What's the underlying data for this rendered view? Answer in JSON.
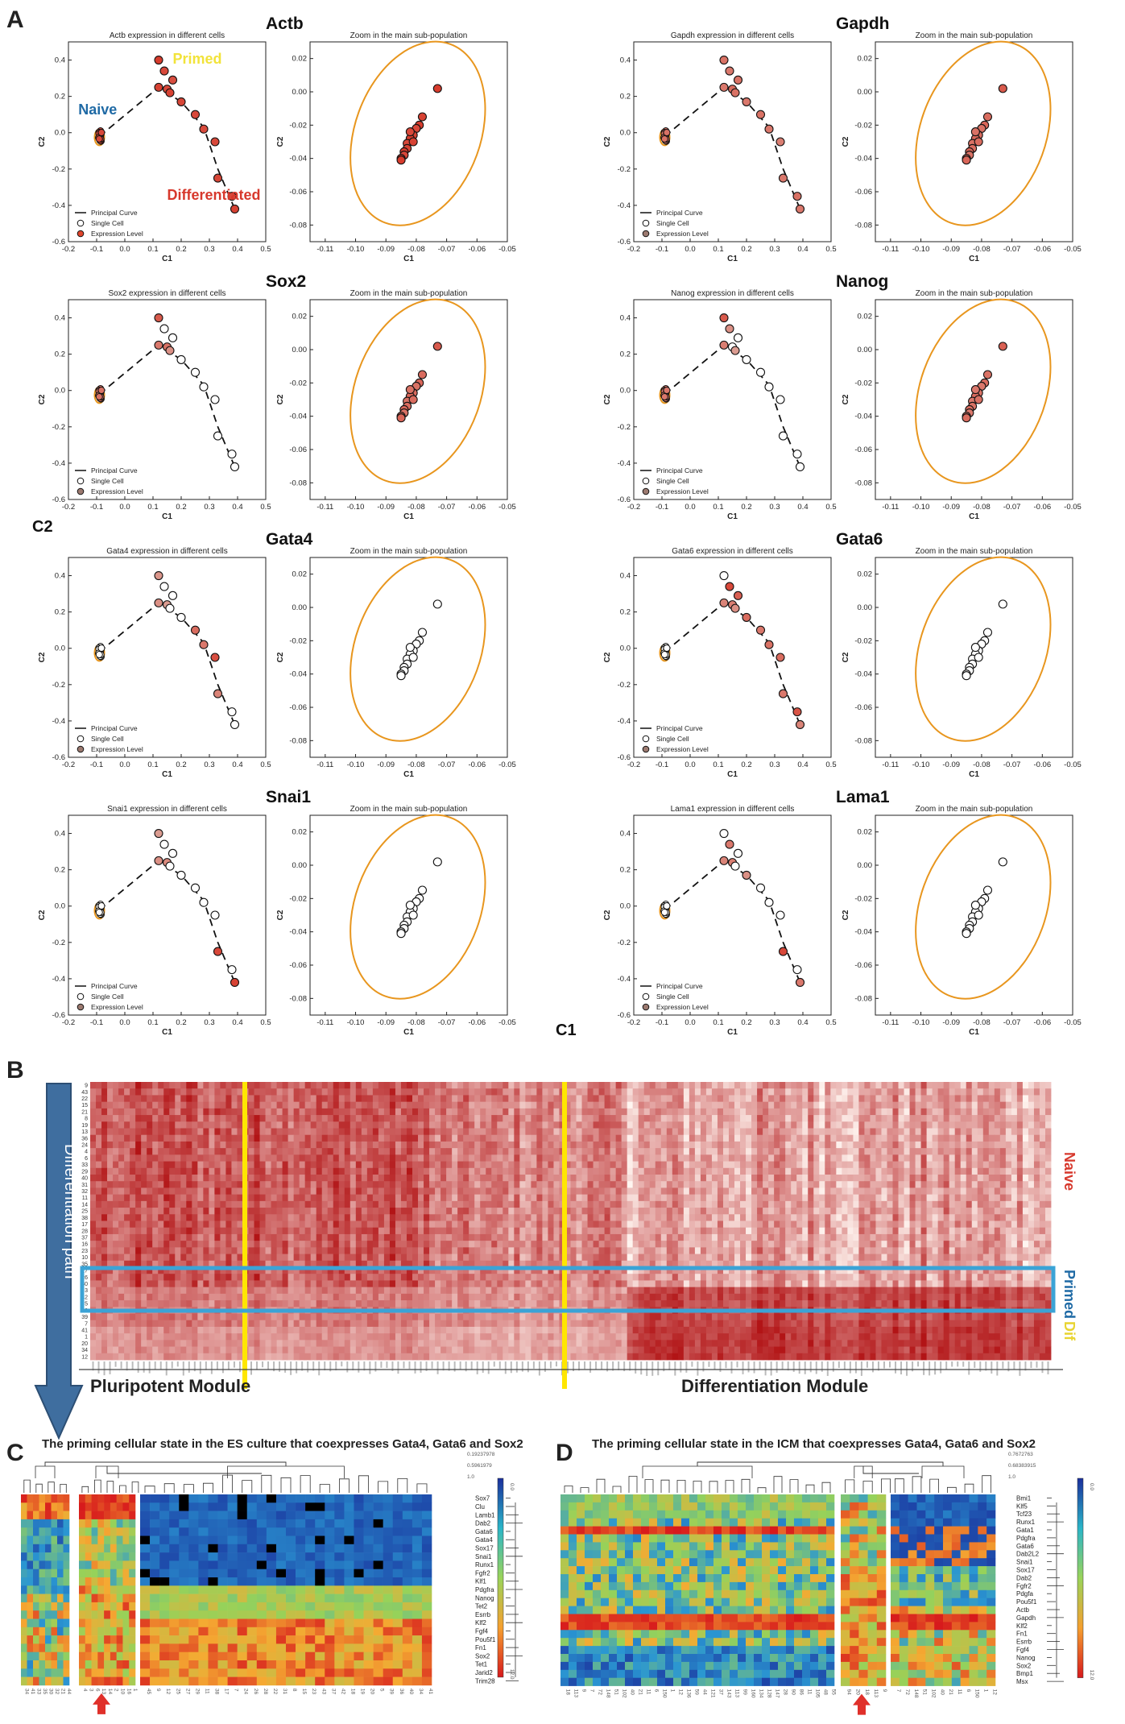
{
  "panels": {
    "A": "A",
    "B": "B",
    "C": "C",
    "D": "D"
  },
  "panelA": {
    "shared_ylabel": "C2",
    "shared_xlabel": "C1",
    "states": {
      "naive": "Naive",
      "primed": "Primed",
      "differentiated": "Differentiated"
    },
    "state_colors": {
      "naive": "#1f6aa5",
      "primed": "#f2e33a",
      "differentiated": "#d7382c"
    },
    "zoom_title": "Zoom in the main sub-population",
    "axis_label_x": "C1",
    "axis_label_y": "C2",
    "main_xticks": [
      "-0.2",
      "-0.1",
      "0.0",
      "0.1",
      "0.2",
      "0.3",
      "0.4",
      "0.5"
    ],
    "main_yticks": [
      "0.4",
      "0.2",
      "0.0",
      "-0.2",
      "-0.4",
      "-0.6"
    ],
    "zoom_xticks": [
      "-0.11",
      "-0.10",
      "-0.09",
      "-0.08",
      "-0.07",
      "-0.06",
      "-0.05"
    ],
    "zoom_yticks": [
      "0.02",
      "0.00",
      "-0.02",
      "-0.04",
      "-0.06",
      "-0.08"
    ],
    "legend": [
      "Principal Curve",
      "Single Cell",
      "Expression Level"
    ],
    "genes": [
      {
        "name": "Actb",
        "title": "Actb expression in different cells",
        "expr": [
          1.0,
          0.9,
          0.85,
          0.95,
          0.9,
          0.95,
          0.92,
          0.9,
          0.88,
          0.9,
          0.92,
          0.9,
          0.95
        ],
        "zoom_expr": 0.9
      },
      {
        "name": "Gapdh",
        "title": "Gapdh expression in different cells",
        "expr": [
          0.55,
          0.5,
          0.55,
          0.5,
          0.6,
          0.55,
          0.5,
          0.55,
          0.5,
          0.45,
          0.5,
          0.55,
          0.5
        ],
        "zoom_expr": 0.55
      },
      {
        "name": "Sox2",
        "title": "Sox2 expression in different cells",
        "expr": [
          0.75,
          0.0,
          0.0,
          0.5,
          0.55,
          0.3,
          0.0,
          0.0,
          0.0,
          0.0,
          0.0,
          0.0,
          0.0
        ],
        "zoom_expr": 0.55
      },
      {
        "name": "Nanog",
        "title": "Nanog expression in different cells",
        "expr": [
          0.75,
          0.3,
          0.0,
          0.45,
          0.0,
          0.2,
          0.0,
          0.0,
          0.0,
          0.0,
          0.0,
          0.0,
          0.0
        ],
        "zoom_expr": 0.5
      },
      {
        "name": "Gata4",
        "title": "Gata4 expression in different cells",
        "expr": [
          0.25,
          0.0,
          0.0,
          0.3,
          0.2,
          0.0,
          0.0,
          0.6,
          0.5,
          0.85,
          0.4,
          0.0,
          0.0
        ],
        "zoom_expr": 0.0
      },
      {
        "name": "Gata6",
        "title": "Gata6 expression in different cells",
        "expr": [
          0.0,
          0.9,
          0.7,
          0.4,
          0.45,
          0.3,
          0.6,
          0.5,
          0.55,
          0.6,
          0.5,
          0.8,
          0.4
        ],
        "zoom_expr": 0.0
      },
      {
        "name": "Snai1",
        "title": "Snai1 expression in different cells",
        "expr": [
          0.2,
          0.0,
          0.0,
          0.3,
          0.35,
          0.0,
          0.0,
          0.0,
          0.0,
          0.0,
          0.9,
          0.0,
          0.95
        ],
        "zoom_expr": 0.0
      },
      {
        "name": "Lama1",
        "title": "Lama1 expression in different cells",
        "expr": [
          0.0,
          0.5,
          0.0,
          0.4,
          0.45,
          0.0,
          0.3,
          0.0,
          0.0,
          0.0,
          0.9,
          0.0,
          0.5
        ],
        "zoom_expr": 0.0
      }
    ]
  },
  "panelB": {
    "arrow_label": "Differentiation path",
    "states": [
      "Naive",
      "Primed",
      "Dif"
    ],
    "module_left": "Pluripotent Module",
    "module_right": "Differentiation Module",
    "row_labels": [
      "9",
      "43",
      "22",
      "15",
      "21",
      "8",
      "19",
      "13",
      "36",
      "24",
      "4",
      "6",
      "33",
      "29",
      "40",
      "31",
      "32",
      "11",
      "14",
      "25",
      "38",
      "17",
      "28",
      "37",
      "16",
      "23",
      "10",
      "35",
      "27",
      "26",
      "30",
      "3",
      "42",
      "5",
      "2",
      "39",
      "7",
      "41",
      "1",
      "20",
      "34",
      "12"
    ],
    "column_count": 170
  },
  "panelC": {
    "title": "The priming cellular state in the ES culture that coexpresses Gata4, Gata6 and Sox2",
    "genes": [
      "Sox7",
      "Clu",
      "Lamb1",
      "Dab2",
      "Gata6",
      "Gata4",
      "Sox17",
      "Snai1",
      "Runx1",
      "Fgfr2",
      "Klf1",
      "Pdgfra",
      "Nanog",
      "Tet2",
      "Esrrb",
      "Klf2",
      "Fgf4",
      "Pou5f1",
      "Fn1",
      "Sox2",
      "Tet1",
      "Jarid2",
      "Trim28"
    ],
    "colorbar_ticks": [
      "0.0",
      "12.0"
    ],
    "dendro_values": [
      "0.19237978",
      "0.5961979",
      "1.0"
    ],
    "column_labels": [
      "34",
      "41",
      "33",
      "35",
      "30",
      "32",
      "21",
      "44",
      "4",
      "3",
      "6",
      "13",
      "14",
      "2",
      "10",
      "16",
      "1",
      "45",
      "9",
      "12",
      "25",
      "27",
      "29",
      "11",
      "38",
      "17",
      "7",
      "24",
      "26",
      "28",
      "22",
      "31",
      "8",
      "15",
      "23",
      "43",
      "37",
      "42",
      "18",
      "19",
      "20",
      "5",
      "39",
      "36",
      "40"
    ]
  },
  "panelD": {
    "title": "The priming cellular state in the ICM that coexpresses Gata4, Gata6 and Sox2",
    "genes": [
      "Bmi1",
      "Klf5",
      "Tcf23",
      "Runx1",
      "Gata1",
      "Pdgfra",
      "Gata6",
      "Dab2L2",
      "Snai1",
      "Sox17",
      "Dab2",
      "Fgfr2",
      "Pdgfa",
      "Pou5f1",
      "Actb",
      "Gapdh",
      "Klf2",
      "Fn1",
      "Esrrb",
      "Fgf4",
      "Nanog",
      "Sox2",
      "Bmp1",
      "Msx"
    ],
    "colorbar_ticks": [
      "0.0",
      "12.0"
    ],
    "dendro_values": [
      "0.7672763",
      "0.68383915",
      "1.0"
    ],
    "column_labels": [
      "18",
      "113",
      "9",
      "7",
      "72",
      "148",
      "51",
      "102",
      "40",
      "21",
      "11",
      "6",
      "150",
      "1",
      "12",
      "136",
      "59",
      "44",
      "121",
      "37",
      "143",
      "113",
      "99",
      "160",
      "134",
      "128",
      "147",
      "28",
      "90",
      "86",
      "11",
      "105",
      "48",
      "55",
      "94",
      "20"
    ]
  }
}
